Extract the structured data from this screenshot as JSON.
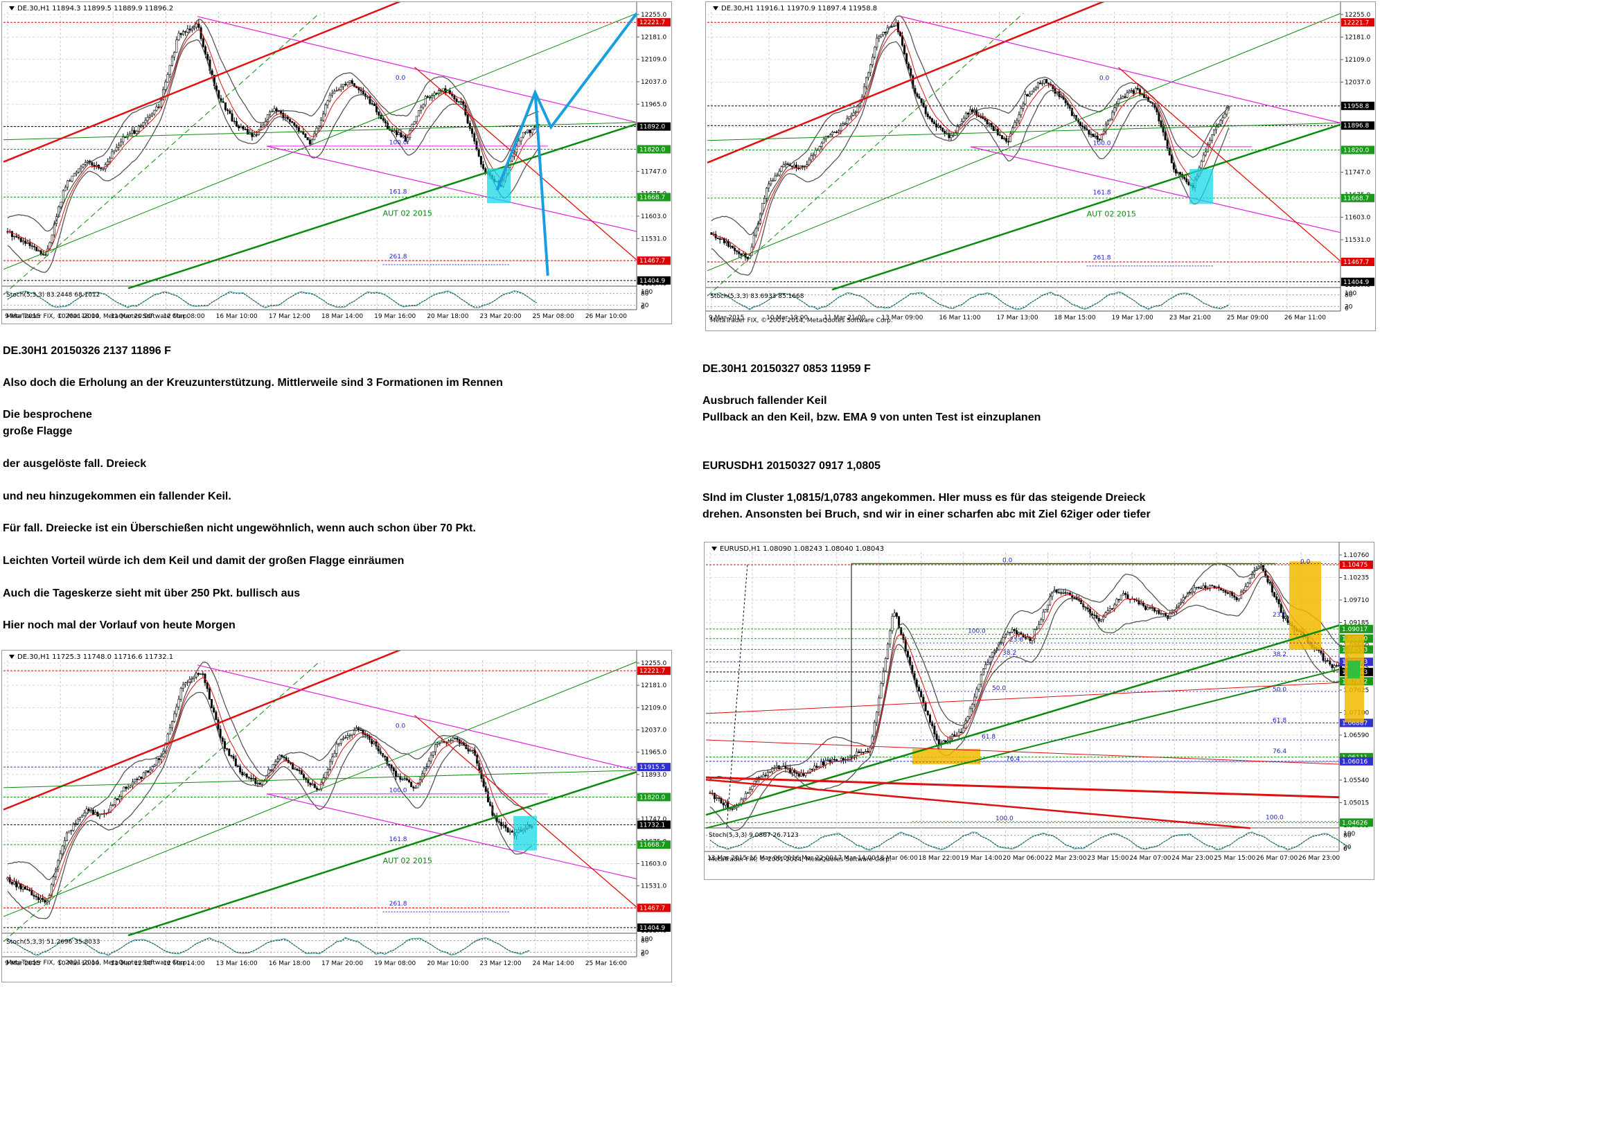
{
  "charts": [
    {
      "id": "c1",
      "header": "DE.30,H1  11894.3 11899.5 11889.9 11896.2",
      "stoch": "Stoch(5,3,3) 83.2448 68.1012",
      "meta": "MetaTrader FIX, © 2001-2014, MetaQuotes Software Corp.",
      "price_labels": [
        "12255.0",
        "12181.0",
        "12109.0",
        "12037.0",
        "11965.0",
        "11893.0",
        "11820.0",
        "11747.0",
        "11675.0",
        "11603.0",
        "11531.0",
        "11459.0",
        "11387.0"
      ],
      "markers": [
        {
          "value": "12221.7",
          "color": "#e00000",
          "y": 12221.7
        },
        {
          "value": "11892.0",
          "color": "#000000",
          "y": 11892.0
        },
        {
          "value": "11820.0",
          "color": "#1a9a1a",
          "y": 11820.0
        },
        {
          "value": "11668.7",
          "color": "#1a9a1a",
          "y": 11668.7
        },
        {
          "value": "11467.7",
          "color": "#e00000",
          "y": 11467.7
        },
        {
          "value": "11404.9",
          "color": "#000000",
          "y": 11404.9
        }
      ],
      "stoch_levels": [
        "100",
        "80",
        "20",
        "0"
      ],
      "time_labels": [
        "9 Mar 2015",
        "10 Mar 18:00",
        "11 Mar 20:00",
        "12 Mar 08:00",
        "16 Mar 10:00",
        "17 Mar 12:00",
        "18 Mar 14:00",
        "19 Mar 16:00",
        "20 Mar 18:00",
        "23 Mar 20:00",
        "25 Mar 08:00",
        "26 Mar 10:00"
      ],
      "fib_labels": [
        "0.0",
        "100.0",
        "161.8",
        "261.8"
      ],
      "annotation": "AUT 02 2015"
    },
    {
      "id": "c2",
      "header": "DE.30,H1  11916.1 11970.9 11897.4 11958.8",
      "stoch": "Stoch(5,3,3) 83.6933 85.1668",
      "meta": "MetaTrader FIX, © 2001-2014, MetaQuotes Software Corp.",
      "price_labels": [
        "12255.0",
        "12181.0",
        "12109.0",
        "12037.0",
        "11965.0",
        "11893.0",
        "11820.0",
        "11747.0",
        "11675.0",
        "11603.0",
        "11531.0",
        "11459.0",
        "11387.0"
      ],
      "markers": [
        {
          "value": "12221.7",
          "color": "#e00000",
          "y": 12221.7
        },
        {
          "value": "11958.8",
          "color": "#000000",
          "y": 11958.8
        },
        {
          "value": "11896.8",
          "color": "#000000",
          "y": 11896.8
        },
        {
          "value": "11820.0",
          "color": "#1a9a1a",
          "y": 11820.0
        },
        {
          "value": "11668.7",
          "color": "#1a9a1a",
          "y": 11668.7
        },
        {
          "value": "11467.7",
          "color": "#e00000",
          "y": 11467.7
        },
        {
          "value": "11404.9",
          "color": "#000000",
          "y": 11404.9
        }
      ],
      "stoch_levels": [
        "100",
        "80",
        "20",
        "0"
      ],
      "time_labels": [
        "9 Mar 2015",
        "10 Mar 19:00",
        "11 Mar 21:00",
        "13 Mar 09:00",
        "16 Mar 11:00",
        "17 Mar 13:00",
        "18 Mar 15:00",
        "19 Mar 17:00",
        "23 Mar 21:00",
        "25 Mar 09:00",
        "26 Mar 11:00"
      ],
      "fib_labels": [
        "0.0",
        "100.0",
        "161.8",
        "261.8"
      ],
      "annotation": "AUT 02 2015"
    },
    {
      "id": "c3",
      "header": "DE.30,H1  11725.3 11748.0 11716.6 11732.1",
      "stoch": "Stoch(5,3,3) 51.2696 35.8033",
      "meta": "MetaTrader FIX, © 2001-2014, MetaQuotes Software Corp.",
      "price_labels": [
        "12255.0",
        "12181.0",
        "12109.0",
        "12037.0",
        "11965.0",
        "11893.0",
        "11820.0",
        "11747.0",
        "11675.0",
        "11603.0",
        "11531.0",
        "11459.0",
        "11387.0"
      ],
      "markers": [
        {
          "value": "12221.7",
          "color": "#e00000",
          "y": 12221.7
        },
        {
          "value": "11915.5",
          "color": "#3030d0",
          "y": 11915.5
        },
        {
          "value": "11820.0",
          "color": "#1a9a1a",
          "y": 11820.0
        },
        {
          "value": "11732.1",
          "color": "#000000",
          "y": 11732.1
        },
        {
          "value": "11668.7",
          "color": "#1a9a1a",
          "y": 11668.7
        },
        {
          "value": "11467.7",
          "color": "#e00000",
          "y": 11467.7
        },
        {
          "value": "11404.9",
          "color": "#000000",
          "y": 11404.9
        }
      ],
      "stoch_levels": [
        "100",
        "80",
        "20",
        "0"
      ],
      "time_labels": [
        "9 Mar 2015",
        "10 Mar 10:00",
        "11 Mar 12:00",
        "12 Mar 14:00",
        "13 Mar 16:00",
        "16 Mar 18:00",
        "17 Mar 20:00",
        "19 Mar 08:00",
        "20 Mar 10:00",
        "23 Mar 12:00",
        "24 Mar 14:00",
        "25 Mar 16:00"
      ],
      "fib_labels": [
        "0.0",
        "100.0",
        "161.8",
        "261.8"
      ],
      "annotation": "AUT 02 2015"
    },
    {
      "id": "c4",
      "header": "EURUSD,H1  1.08090 1.08243 1.08040 1.08043",
      "stoch": "Stoch(5,3,3) 9.0867 26.7123",
      "meta": "MetaTrader FIX, © 2001-2014, MetaQuotes Software Corp.",
      "price_labels": [
        "1.10760",
        "1.10235",
        "1.09710",
        "1.09185",
        "1.08660",
        "1.08135",
        "1.07625",
        "1.07100",
        "1.06590",
        "1.06065",
        "1.05540",
        "1.05015",
        "1.04505"
      ],
      "markers": [
        {
          "value": "1.10475",
          "color": "#e00000",
          "y": 1.10475
        },
        {
          "value": "1.09017",
          "color": "#1a9a1a",
          "y": 1.09017
        },
        {
          "value": "1.08800",
          "color": "#1a9a1a",
          "y": 1.088
        },
        {
          "value": "1.08553",
          "color": "#1a9a1a",
          "y": 1.08553
        },
        {
          "value": "1.08273",
          "color": "#3030d0",
          "y": 1.08273
        },
        {
          "value": "1.08043",
          "color": "#000000",
          "y": 1.08043
        },
        {
          "value": "1.07832",
          "color": "#1a9a1a",
          "y": 1.07832
        },
        {
          "value": "1.06887",
          "color": "#3030d0",
          "y": 1.06887
        },
        {
          "value": "1.06111",
          "color": "#1a9a1a",
          "y": 1.06111
        },
        {
          "value": "1.06016",
          "color": "#3030d0",
          "y": 1.06016
        },
        {
          "value": "1.04626",
          "color": "#1a9a1a",
          "y": 1.04626
        }
      ],
      "stoch_levels": [
        "100",
        "80",
        "20",
        "0"
      ],
      "time_labels": [
        "13 Mar 2015",
        "16 Mar 06:00",
        "16 Mar 22:00",
        "17 Mar 14:00",
        "18 Mar 06:00",
        "18 Mar 22:00",
        "19 Mar 14:00",
        "20 Mar 06:00",
        "22 Mar 23:00",
        "23 Mar 15:00",
        "24 Mar 07:00",
        "24 Mar 23:00",
        "25 Mar 15:00",
        "26 Mar 07:00",
        "26 Mar 23:00"
      ],
      "fib_labels": [
        "0.0",
        "100.0",
        "23.6",
        "38.2",
        "50.0",
        "61.8",
        "76.4",
        "100.0"
      ]
    }
  ],
  "chart_data": [
    {
      "type": "line",
      "title": "DE.30,H1",
      "ylim": [
        11387,
        12255
      ],
      "reference_levels": [
        12221.7,
        11892.0,
        11820.0,
        11668.7,
        11467.7,
        11404.9
      ],
      "series": [
        {
          "values": [
            11560,
            11520,
            11480,
            11700,
            11780,
            11760,
            11850,
            11890,
            11960,
            12180,
            12220,
            12000,
            11900,
            11860,
            11950,
            11900,
            11840,
            11990,
            12040,
            11980,
            11890,
            11850,
            11980,
            12010,
            11960,
            11760,
            11700,
            11860,
            11896
          ]
        }
      ]
    },
    {
      "type": "line",
      "title": "DE.30,H1",
      "ylim": [
        11387,
        12255
      ],
      "reference_levels": [
        12221.7,
        11958.8,
        11896.8,
        11820.0,
        11668.7,
        11467.7,
        11404.9
      ],
      "series": [
        {
          "values": [
            11560,
            11520,
            11480,
            11700,
            11780,
            11760,
            11850,
            11890,
            11960,
            12180,
            12220,
            12000,
            11900,
            11860,
            11950,
            11900,
            11840,
            11990,
            12040,
            11980,
            11890,
            11850,
            11980,
            12010,
            11960,
            11760,
            11700,
            11860,
            11959
          ]
        }
      ]
    },
    {
      "type": "line",
      "title": "DE.30,H1",
      "ylim": [
        11387,
        12255
      ],
      "reference_levels": [
        12221.7,
        11915.5,
        11820.0,
        11732.1,
        11668.7,
        11467.7,
        11404.9
      ],
      "series": [
        {
          "values": [
            11560,
            11520,
            11480,
            11700,
            11780,
            11760,
            11850,
            11890,
            11960,
            12180,
            12220,
            12000,
            11900,
            11860,
            11950,
            11900,
            11840,
            11990,
            12040,
            11980,
            11890,
            11850,
            11980,
            12010,
            11960,
            11760,
            11700,
            11732
          ]
        }
      ]
    },
    {
      "type": "line",
      "title": "EURUSD,H1",
      "ylim": [
        1.04505,
        1.1076
      ],
      "reference_levels": [
        1.10475,
        1.09017,
        1.088,
        1.08553,
        1.08273,
        1.08043,
        1.07832,
        1.06887,
        1.06111,
        1.06016,
        1.04626
      ],
      "series": [
        {
          "values": [
            1.053,
            1.049,
            1.056,
            1.059,
            1.057,
            1.06,
            1.061,
            1.063,
            1.095,
            1.077,
            1.064,
            1.067,
            1.082,
            1.09,
            1.088,
            1.099,
            1.097,
            1.092,
            1.098,
            1.095,
            1.093,
            1.099,
            1.1,
            1.097,
            1.105,
            1.093,
            1.088,
            1.082,
            1.0804
          ]
        }
      ]
    }
  ],
  "texts": {
    "c1_title": "DE.30H1 20150326 2137 11896 F",
    "p1": "Also doch die Erholung an der Kreuzunterstützung.  Mittlerweile sind 3 Formationen im Rennen",
    "p2": "Die besprochene",
    "p3": "große Flagge",
    "p4": "der ausgelöste fall. Dreieck",
    "p5": "und neu hinzugekommen ein fallender Keil.",
    "p6": "Für fall. Dreiecke ist ein Überschießen nicht ungewöhnlich, wenn auch schon über 70 Pkt.",
    "p7": "Leichten Vorteil würde ich dem Keil und damit der großen Flagge einräumen",
    "p8": "Auch die Tageskerze sieht mit über 250 Pkt. bullisch aus",
    "p9": "Hier noch mal der Vorlauf von heute Morgen",
    "c2_title": "DE.30H1 20150327 0853 11959 F",
    "r1": "Ausbruch fallender Keil",
    "r2": "Pullback an den Keil, bzw. EMA 9 von unten Test ist einzuplanen",
    "c4_title": "EURUSDH1 20150327 0917 1,0805",
    "r3": "SInd im Cluster 1,0815/1,0783 angekommen. HIer muss es für das steigende Dreieck",
    "r4": "drehen. Ansonsten bei Bruch, snd wir in einer scharfen abc mit Ziel 62iger oder tiefer"
  }
}
